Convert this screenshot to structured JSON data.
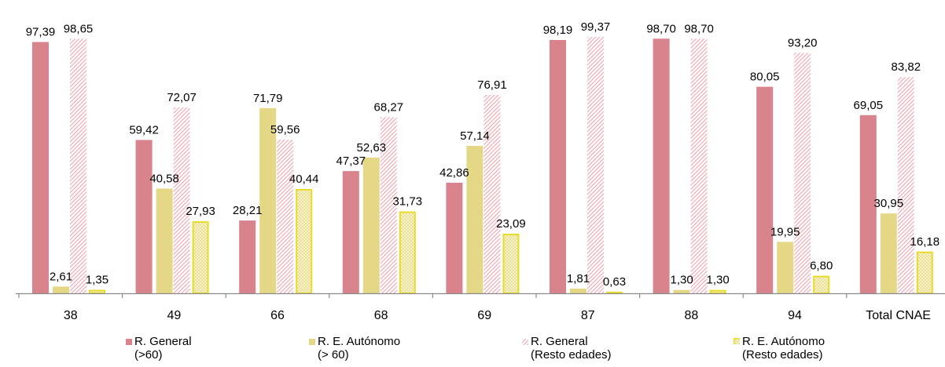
{
  "chart_data": {
    "type": "bar",
    "categories": [
      "38",
      "49",
      "66",
      "68",
      "69",
      "87",
      "88",
      "94",
      "Total CNAE"
    ],
    "series": [
      {
        "name": "R. General\n(>60)",
        "style": "solid",
        "color": "#d9838c",
        "values": [
          97.39,
          59.42,
          28.21,
          47.37,
          42.86,
          98.19,
          98.7,
          80.05,
          69.05
        ],
        "labels": [
          "97,39",
          "59,42",
          "28,21",
          "47,37",
          "42,86",
          "98,19",
          "98,70",
          "80,05",
          "69,05"
        ]
      },
      {
        "name": "R. E. Autónomo\n(> 60)",
        "style": "solid",
        "color": "#e4d887",
        "values": [
          2.61,
          40.58,
          71.79,
          52.63,
          57.14,
          1.81,
          1.3,
          19.95,
          30.95
        ],
        "labels": [
          "2,61",
          "40,58",
          "71,79",
          "52,63",
          "57,14",
          "1,81",
          "1,30",
          "19,95",
          "30,95"
        ]
      },
      {
        "name": "R. General\n(Resto edades)",
        "style": "hatch",
        "color": "#f0b8c0",
        "values": [
          98.65,
          72.07,
          59.56,
          68.27,
          76.91,
          99.37,
          98.7,
          93.2,
          83.82
        ],
        "labels": [
          "98,65",
          "72,07",
          "59,56",
          "68,27",
          "76,91",
          "99,37",
          "98,70",
          "93,20",
          "83,82"
        ]
      },
      {
        "name": "R. E.   Autónomo\n(Resto edades)",
        "style": "dotted",
        "color": "#e8dc28",
        "values": [
          1.35,
          27.93,
          40.44,
          31.73,
          23.09,
          0.63,
          1.3,
          6.8,
          16.18
        ],
        "labels": [
          "1,35",
          "27,93",
          "40,44",
          "31,73",
          "23,09",
          "0,63",
          "1,30",
          "6,80",
          "16,18"
        ]
      }
    ],
    "ylim": [
      0,
      100
    ],
    "grid": false,
    "legend_position": "bottom"
  }
}
